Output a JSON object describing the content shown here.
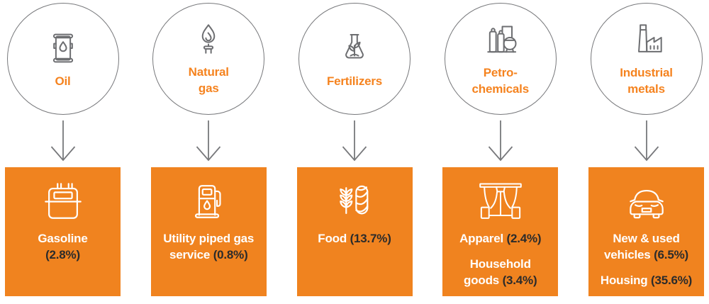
{
  "palette": {
    "box_orange": "#F0831F",
    "label_orange": "#F5831F",
    "stroke_gray": "#77787B",
    "icon_gray": "#6D6E71",
    "dark_text": "#2B2B2B",
    "white": "#FFFFFF"
  },
  "columns": [
    {
      "id": "oil",
      "source": {
        "icon": "oil-barrel-icon",
        "lines": [
          "Oil"
        ]
      },
      "target": {
        "icon": "gas-meter-icon",
        "lines": [
          {
            "runs": [
              {
                "t": "Gasoline"
              }
            ]
          },
          {
            "runs": [
              {
                "t": "(2.8%)",
                "dark": true
              }
            ]
          }
        ]
      }
    },
    {
      "id": "natural-gas",
      "source": {
        "icon": "gas-flame-icon",
        "lines": [
          "Natural",
          "gas"
        ]
      },
      "target": {
        "icon": "fuel-pump-icon",
        "lines": [
          {
            "runs": [
              {
                "t": "Utility piped gas"
              }
            ]
          },
          {
            "runs": [
              {
                "t": "service "
              },
              {
                "t": "(0.8%)",
                "dark": true
              }
            ]
          }
        ]
      }
    },
    {
      "id": "fertilizers",
      "source": {
        "icon": "flask-plant-icon",
        "lines": [
          "Fertilizers"
        ]
      },
      "target": {
        "icon": "wheat-bread-icon",
        "lines": [
          {
            "runs": [
              {
                "t": "Food "
              },
              {
                "t": "(13.7%)",
                "dark": true
              }
            ]
          }
        ]
      }
    },
    {
      "id": "petrochemicals",
      "source": {
        "icon": "chemical-tanks-icon",
        "lines": [
          "Petro-",
          "chemicals"
        ]
      },
      "target": {
        "icon": "curtains-icon",
        "lines": [
          {
            "runs": [
              {
                "t": "Apparel "
              },
              {
                "t": "(2.4%)",
                "dark": true
              }
            ]
          },
          {
            "para": true,
            "runs": [
              {
                "t": "Household"
              }
            ]
          },
          {
            "runs": [
              {
                "t": "goods "
              },
              {
                "t": "(3.4%)",
                "dark": true
              }
            ]
          }
        ]
      }
    },
    {
      "id": "industrial-metals",
      "source": {
        "icon": "factory-icon",
        "lines": [
          "Industrial",
          "metals"
        ]
      },
      "target": {
        "icon": "car-front-icon",
        "lines": [
          {
            "runs": [
              {
                "t": "New & used"
              }
            ]
          },
          {
            "runs": [
              {
                "t": "vehicles "
              },
              {
                "t": "(6.5%)",
                "dark": true
              }
            ]
          },
          {
            "para": true,
            "runs": [
              {
                "t": "Housing "
              },
              {
                "t": "(35.6%)",
                "dark": true
              }
            ]
          }
        ]
      }
    }
  ]
}
